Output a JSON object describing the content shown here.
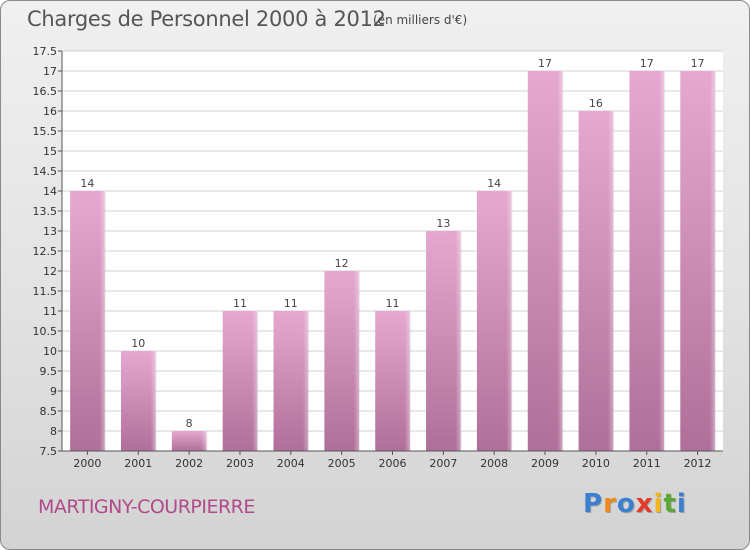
{
  "header": {
    "title": "Charges de Personnel 2000 à 2012",
    "subtitle": "(en milliers d'€)"
  },
  "footer": {
    "commune": "MARTIGNY-COURPIERRE",
    "logo_letters": [
      "P",
      "r",
      "o",
      "x",
      "i",
      "t",
      "i"
    ],
    "logo_colors": [
      "#3b7fd1",
      "#f08a1c",
      "#3b7fd1",
      "#e33a2b",
      "#f2b41f",
      "#5aa832",
      "#3b7fd1"
    ]
  },
  "chart_data": {
    "type": "bar",
    "title": "Charges de Personnel 2000 à 2012",
    "subtitle": "(en milliers d'€)",
    "categories": [
      "2000",
      "2001",
      "2002",
      "2003",
      "2004",
      "2005",
      "2006",
      "2007",
      "2008",
      "2009",
      "2010",
      "2011",
      "2012"
    ],
    "values": [
      14,
      10,
      8,
      11,
      11,
      12,
      11,
      13,
      14,
      17,
      16,
      17,
      17
    ],
    "value_labels": [
      "14",
      "10",
      "8",
      "11",
      "11",
      "12",
      "11",
      "13",
      "14",
      "17",
      "16",
      "17",
      "17"
    ],
    "ylim": [
      7.5,
      17.5
    ],
    "yticks": [
      7.5,
      8,
      8.5,
      9,
      9.5,
      10,
      10.5,
      11,
      11.5,
      12,
      12.5,
      13,
      13.5,
      14,
      14.5,
      15,
      15.5,
      16,
      16.5,
      17,
      17.5
    ],
    "ytick_labels": [
      "7.5",
      "8",
      "8.5",
      "9",
      "9.5",
      "10",
      "10.5",
      "11",
      "11.5",
      "12",
      "12.5",
      "13",
      "13.5",
      "14",
      "14.5",
      "15",
      "15.5",
      "16",
      "16.5",
      "17",
      "17.5"
    ],
    "grid": true,
    "bar_color_top": "#e6a8d0",
    "bar_color_bottom": "#b06f9a",
    "plot_background": "#ffffff"
  }
}
